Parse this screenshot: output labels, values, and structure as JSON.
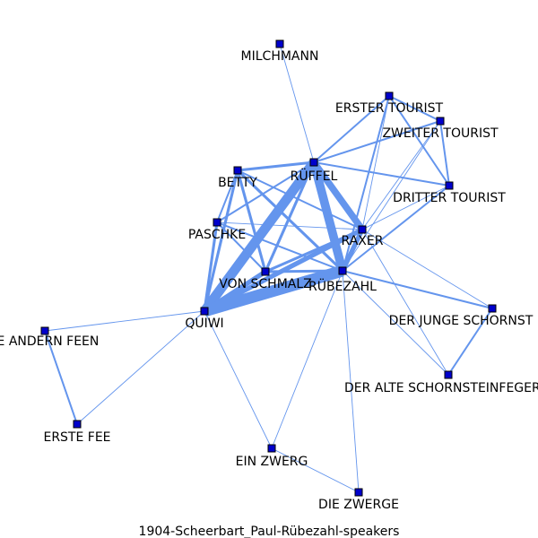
{
  "caption": "1904-Scheerbart_Paul-Rübezahl-speakers",
  "colors": {
    "edge": "#6495ed",
    "node": "#0000cc",
    "node_stroke": "#000000",
    "text": "#000000"
  },
  "nodes": [
    {
      "id": "milchmann",
      "label": "MILCHMANN"
    },
    {
      "id": "erster_tourist",
      "label": "ERSTER TOURIST"
    },
    {
      "id": "zweiter_tourist",
      "label": "ZWEITER TOURIST"
    },
    {
      "id": "rueffel",
      "label": "RÜFFEL"
    },
    {
      "id": "betty",
      "label": "BETTY"
    },
    {
      "id": "dritter_tourist",
      "label": "DRITTER TOURIST"
    },
    {
      "id": "paschke",
      "label": "PASCHKE"
    },
    {
      "id": "raxer",
      "label": "RAXER"
    },
    {
      "id": "von_schmalz",
      "label": "VON SCHMALZ"
    },
    {
      "id": "ruebezahl",
      "label": "RÜBEZAHL"
    },
    {
      "id": "der_junge_schornst",
      "label": "DER JUNGE SCHORNST"
    },
    {
      "id": "quiwi",
      "label": "QUIWI"
    },
    {
      "id": "die_andern_feen",
      "label": "DIE ANDERN FEEN"
    },
    {
      "id": "der_alte_schornsteinfeger",
      "label": "DER ALTE SCHORNSTEINFEGER"
    },
    {
      "id": "erste_fee",
      "label": "ERSTE FEE"
    },
    {
      "id": "ein_zwerg",
      "label": "EIN ZWERG"
    },
    {
      "id": "die_zwerge",
      "label": "DIE ZWERGE"
    }
  ],
  "edges": [
    {
      "source": "milchmann",
      "target": "rueffel",
      "weight": 1
    },
    {
      "source": "erster_tourist",
      "target": "zweiter_tourist",
      "weight": 2
    },
    {
      "source": "erster_tourist",
      "target": "dritter_tourist",
      "weight": 2
    },
    {
      "source": "erster_tourist",
      "target": "rueffel",
      "weight": 2
    },
    {
      "source": "erster_tourist",
      "target": "raxer",
      "weight": 1
    },
    {
      "source": "erster_tourist",
      "target": "ruebezahl",
      "weight": 2
    },
    {
      "source": "zweiter_tourist",
      "target": "dritter_tourist",
      "weight": 2
    },
    {
      "source": "zweiter_tourist",
      "target": "rueffel",
      "weight": 2
    },
    {
      "source": "zweiter_tourist",
      "target": "raxer",
      "weight": 1
    },
    {
      "source": "zweiter_tourist",
      "target": "ruebezahl",
      "weight": 1
    },
    {
      "source": "dritter_tourist",
      "target": "rueffel",
      "weight": 2
    },
    {
      "source": "dritter_tourist",
      "target": "raxer",
      "weight": 1
    },
    {
      "source": "dritter_tourist",
      "target": "ruebezahl",
      "weight": 2
    },
    {
      "source": "rueffel",
      "target": "betty",
      "weight": 3
    },
    {
      "source": "rueffel",
      "target": "paschke",
      "weight": 2
    },
    {
      "source": "rueffel",
      "target": "raxer",
      "weight": 7
    },
    {
      "source": "rueffel",
      "target": "ruebezahl",
      "weight": 9
    },
    {
      "source": "rueffel",
      "target": "von_schmalz",
      "weight": 3
    },
    {
      "source": "rueffel",
      "target": "quiwi",
      "weight": 10
    },
    {
      "source": "betty",
      "target": "paschke",
      "weight": 2
    },
    {
      "source": "betty",
      "target": "raxer",
      "weight": 2
    },
    {
      "source": "betty",
      "target": "von_schmalz",
      "weight": 3
    },
    {
      "source": "betty",
      "target": "ruebezahl",
      "weight": 3
    },
    {
      "source": "betty",
      "target": "quiwi",
      "weight": 3
    },
    {
      "source": "paschke",
      "target": "raxer",
      "weight": 1
    },
    {
      "source": "paschke",
      "target": "von_schmalz",
      "weight": 2
    },
    {
      "source": "paschke",
      "target": "ruebezahl",
      "weight": 2
    },
    {
      "source": "paschke",
      "target": "quiwi",
      "weight": 3
    },
    {
      "source": "raxer",
      "target": "von_schmalz",
      "weight": 3
    },
    {
      "source": "raxer",
      "target": "ruebezahl",
      "weight": 5
    },
    {
      "source": "raxer",
      "target": "quiwi",
      "weight": 5
    },
    {
      "source": "raxer",
      "target": "der_junge_schornst",
      "weight": 1
    },
    {
      "source": "raxer",
      "target": "der_alte_schornsteinfeger",
      "weight": 1
    },
    {
      "source": "von_schmalz",
      "target": "ruebezahl",
      "weight": 3
    },
    {
      "source": "von_schmalz",
      "target": "quiwi",
      "weight": 5
    },
    {
      "source": "ruebezahl",
      "target": "quiwi",
      "weight": 12
    },
    {
      "source": "ruebezahl",
      "target": "der_junge_schornst",
      "weight": 2
    },
    {
      "source": "ruebezahl",
      "target": "der_alte_schornsteinfeger",
      "weight": 1
    },
    {
      "source": "ruebezahl",
      "target": "ein_zwerg",
      "weight": 1
    },
    {
      "source": "ruebezahl",
      "target": "die_zwerge",
      "weight": 1
    },
    {
      "source": "der_junge_schornst",
      "target": "der_alte_schornsteinfeger",
      "weight": 2
    },
    {
      "source": "quiwi",
      "target": "die_andern_feen",
      "weight": 1
    },
    {
      "source": "quiwi",
      "target": "erste_fee",
      "weight": 1
    },
    {
      "source": "quiwi",
      "target": "ein_zwerg",
      "weight": 1
    },
    {
      "source": "die_andern_feen",
      "target": "erste_fee",
      "weight": 2
    },
    {
      "source": "ein_zwerg",
      "target": "die_zwerge",
      "weight": 1
    }
  ]
}
